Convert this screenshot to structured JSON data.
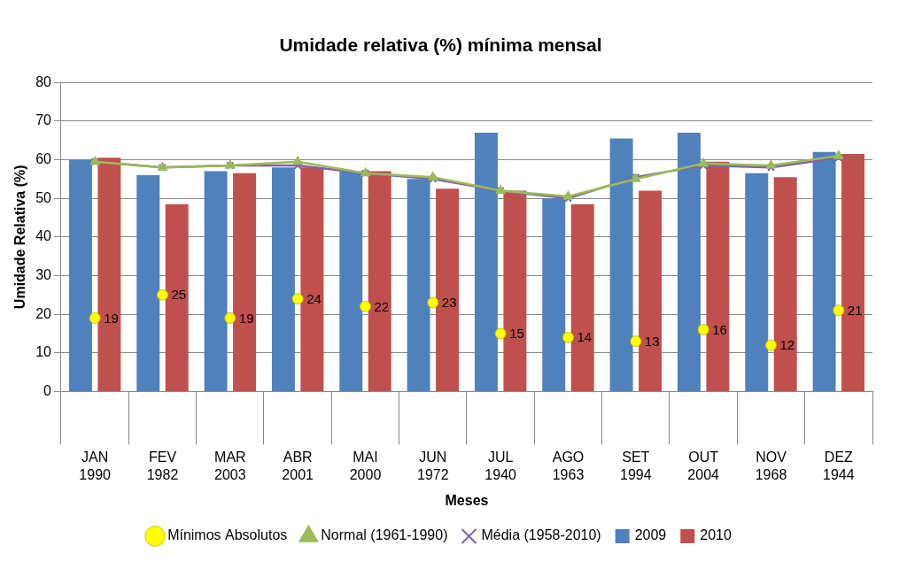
{
  "chart_data": {
    "type": "bar",
    "title": "Umidade relativa (%) mínima mensal",
    "x_label": "Meses",
    "y_label": "Umidade Relativa (%)",
    "categories": [
      [
        "JAN",
        "1990"
      ],
      [
        "FEV",
        "1982"
      ],
      [
        "MAR",
        "2003"
      ],
      [
        "ABR",
        "2001"
      ],
      [
        "MAI",
        "2000"
      ],
      [
        "JUN",
        "1972"
      ],
      [
        "JUL",
        "1940"
      ],
      [
        "AGO",
        "1963"
      ],
      [
        "SET",
        "1994"
      ],
      [
        "OUT",
        "2004"
      ],
      [
        "NOV",
        "1968"
      ],
      [
        "DEZ",
        "1944"
      ]
    ],
    "series": [
      {
        "name": "2009",
        "type": "bar",
        "color": "#4f81bd",
        "values": [
          60,
          56,
          57,
          58,
          57,
          55,
          67,
          50,
          65.5,
          67,
          56.5,
          62
        ]
      },
      {
        "name": "2010",
        "type": "bar",
        "color": "#c0504d",
        "values": [
          60.5,
          48.5,
          56.5,
          58,
          57,
          52.5,
          52,
          48.5,
          52,
          59.5,
          55.5,
          61.5
        ]
      },
      {
        "name": "Mínimos Absolutos",
        "type": "scatter",
        "color": "#ffff00",
        "marker": "circle",
        "data_labels": true,
        "values": [
          19,
          25,
          19,
          24,
          22,
          23,
          15,
          14,
          13,
          16,
          12,
          21
        ]
      },
      {
        "name": "Normal (1961-1990)",
        "type": "line",
        "color": "#9bbb59",
        "marker": "triangle",
        "line_style": "solid",
        "values": [
          59.5,
          58,
          58.5,
          59.5,
          56.5,
          55.5,
          52,
          50.5,
          55,
          59,
          58.5,
          61
        ]
      },
      {
        "name": "Média (1958-2010)",
        "type": "line",
        "color": "#8064a2",
        "marker": "x",
        "line_style": "solid",
        "values": [
          59.5,
          58,
          58.5,
          58.5,
          56.5,
          55,
          52,
          50,
          55.5,
          58.5,
          58,
          60.5
        ]
      }
    ],
    "ylim": [
      0,
      80
    ],
    "yticks": [
      0,
      10,
      20,
      30,
      40,
      50,
      60,
      70,
      80
    ],
    "grid": true,
    "legend": "bottom"
  }
}
